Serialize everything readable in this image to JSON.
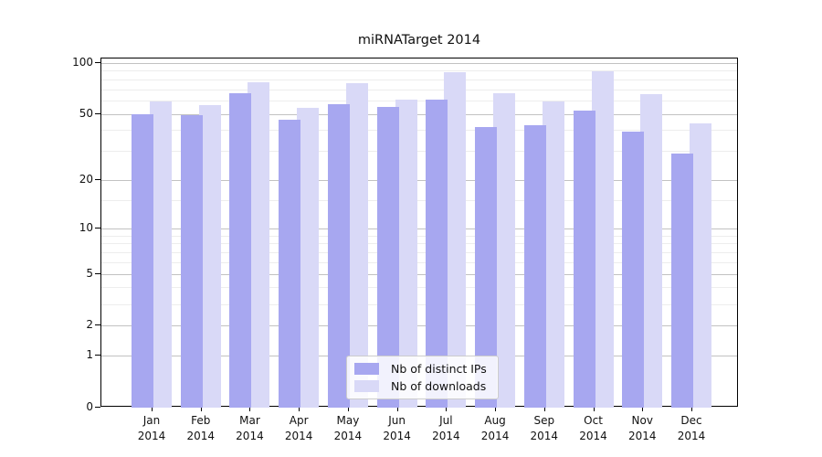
{
  "chart_data": {
    "type": "bar",
    "title": "miRNATarget 2014",
    "categories": [
      "Jan 2014",
      "Feb 2014",
      "Mar 2014",
      "Apr 2014",
      "May 2014",
      "Jun 2014",
      "Jul 2014",
      "Aug 2014",
      "Sep 2014",
      "Oct 2014",
      "Nov 2014",
      "Dec 2014"
    ],
    "series": [
      {
        "name": "Nb of distinct IPs",
        "color": "#a7a7f0",
        "values": [
          50,
          49,
          66,
          46,
          57,
          55,
          61,
          42,
          43,
          52,
          39,
          29
        ]
      },
      {
        "name": "Nb of downloads",
        "color": "#d9d9f7",
        "values": [
          59,
          56,
          77,
          54,
          76,
          61,
          88,
          66,
          59,
          89,
          65,
          44
        ]
      }
    ],
    "xlabel": "",
    "ylabel": "",
    "yscale": "log1p",
    "ylim": [
      0,
      106
    ],
    "yticks": [
      0,
      1,
      2,
      5,
      10,
      20,
      50,
      100
    ],
    "minor_yticks": [
      3,
      4,
      6,
      7,
      8,
      9,
      15,
      30,
      40,
      60,
      70,
      80,
      90
    ],
    "grid": "horizontal",
    "legend_position": "lower center",
    "colors": {
      "grid_major": "#c2c2c2",
      "grid_minor": "#ededed",
      "axis": "#000000",
      "background": "#ffffff"
    }
  }
}
